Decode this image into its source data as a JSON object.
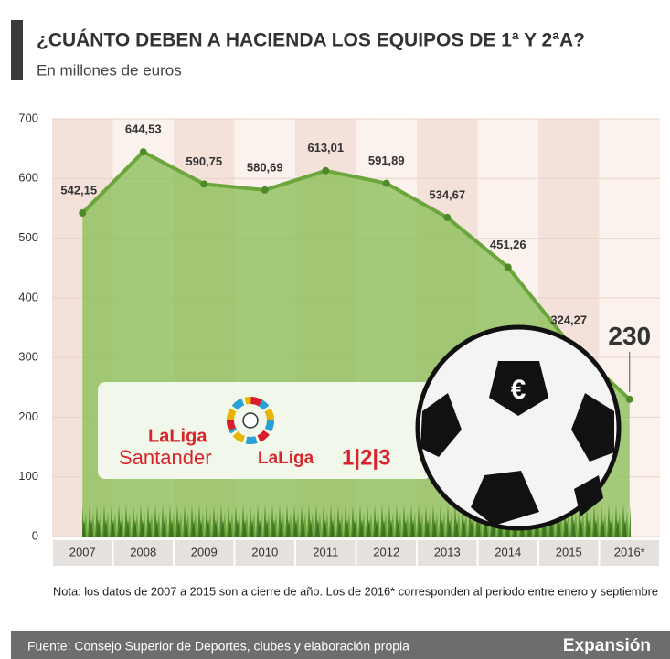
{
  "chart_data": {
    "type": "area-line",
    "title": "¿CUÁNTO DEBEN A HACIENDA LOS EQUIPOS DE 1ª Y 2ªA?",
    "subtitle": "En millones de euros",
    "categories": [
      "2007",
      "2008",
      "2009",
      "2010",
      "2011",
      "2012",
      "2013",
      "2014",
      "2015",
      "2016*"
    ],
    "values": [
      542.15,
      644.53,
      590.75,
      580.69,
      613.01,
      591.89,
      534.67,
      451.26,
      324.27,
      230
    ],
    "value_labels": [
      "542,15",
      "644,53",
      "590,75",
      "580,69",
      "613,01",
      "591,89",
      "534,67",
      "451,26",
      "324,27",
      "230"
    ],
    "color": "#6aa63b",
    "area_color": "#8cbf5a",
    "ylim": [
      0,
      700
    ],
    "yticks": [
      0,
      100,
      200,
      300,
      400,
      500,
      600,
      700
    ],
    "grid": true,
    "note": "Nota: los datos de 2007 a 2015 son a cierre de año. Los de 2016* corresponden al periodo entre enero y septiembre",
    "source": "Fuente: Consejo Superior de Deportes, clubes y elaboración propia",
    "brand": "Expansión"
  },
  "logos": [
    "LaLiga",
    "Santander",
    "LaLiga",
    "1|2|3"
  ],
  "ball_symbol": "€"
}
